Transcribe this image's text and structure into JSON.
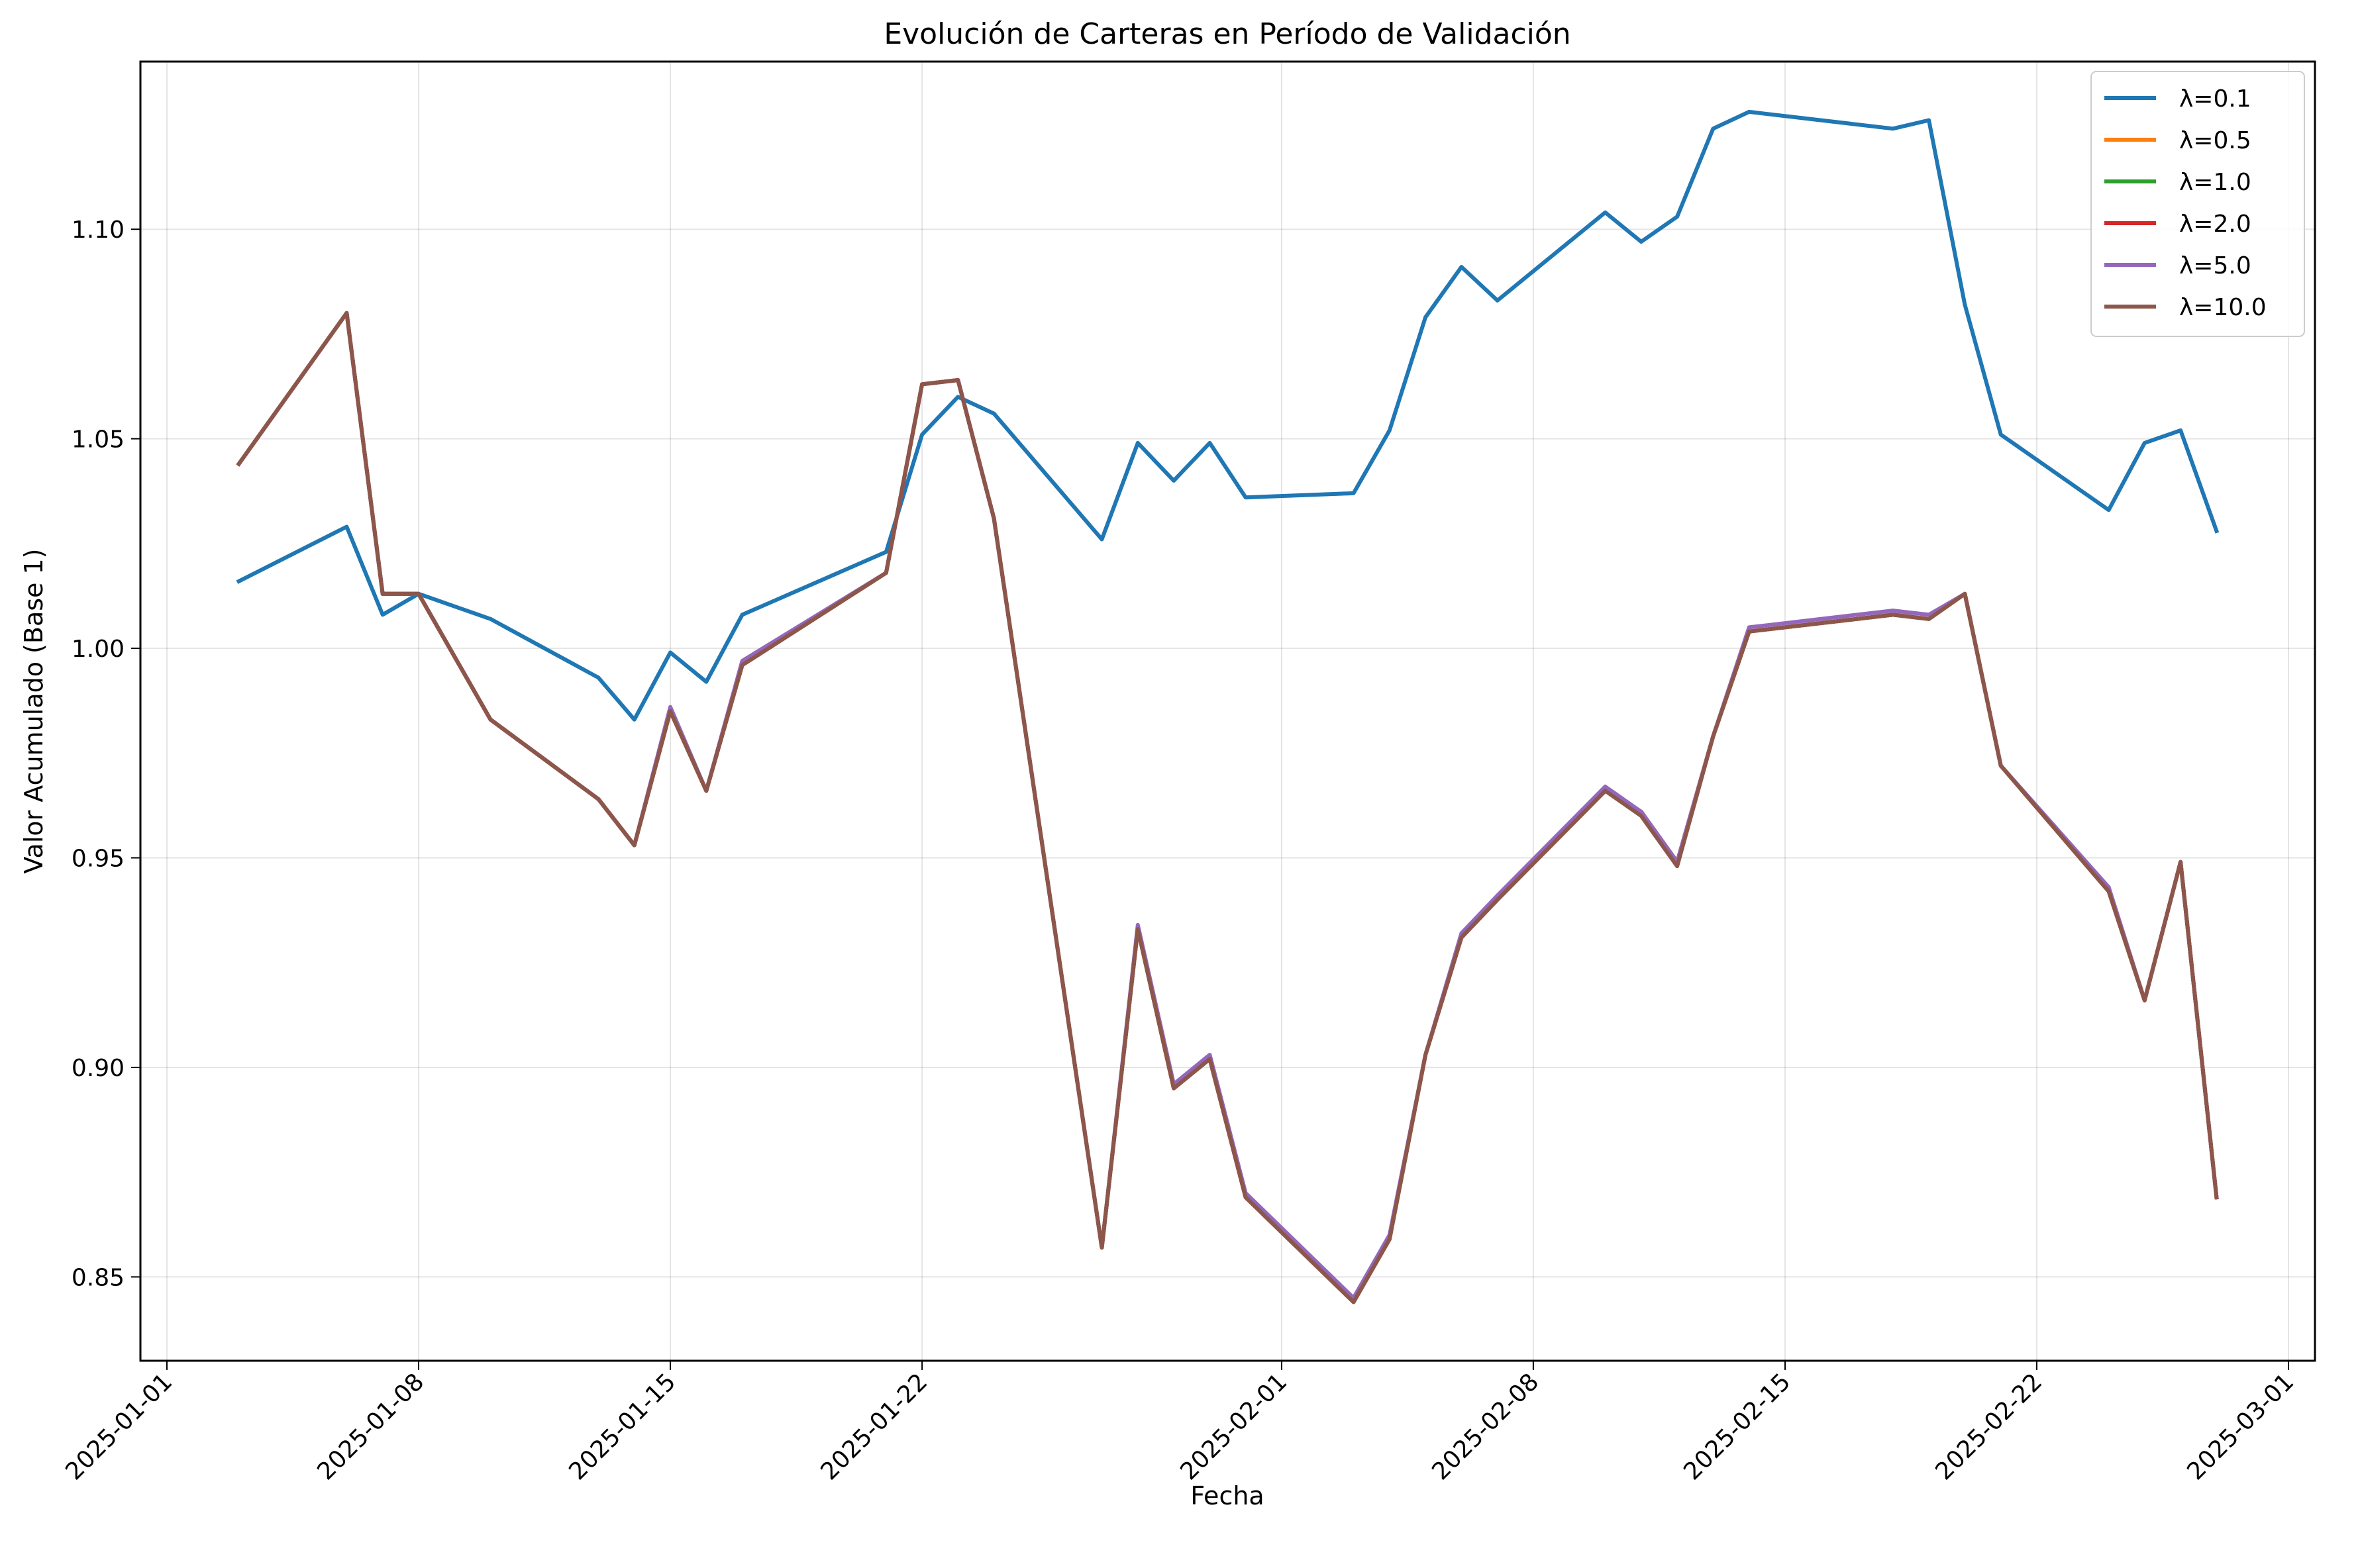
{
  "chart_data": {
    "type": "line",
    "title": "Evolución de Carteras en Período de Validación",
    "xlabel": "Fecha",
    "ylabel": "Valor Acumulado (Base 1)",
    "xlim": [
      "2025-01-01",
      "2025-03-01"
    ],
    "ylim": [
      0.83,
      1.14
    ],
    "x_ticks": [
      "2025-01-01",
      "2025-01-08",
      "2025-01-15",
      "2025-01-22",
      "2025-02-01",
      "2025-02-08",
      "2025-02-15",
      "2025-02-22",
      "2025-03-01"
    ],
    "y_ticks": [
      0.85,
      0.9,
      0.95,
      1.0,
      1.05,
      1.1
    ],
    "y_tick_labels": [
      "0.85",
      "0.90",
      "0.95",
      "1.00",
      "1.05",
      "1.10"
    ],
    "grid": true,
    "legend_position": "top-right",
    "x": [
      "2025-01-03",
      "2025-01-06",
      "2025-01-07",
      "2025-01-08",
      "2025-01-10",
      "2025-01-13",
      "2025-01-14",
      "2025-01-15",
      "2025-01-16",
      "2025-01-17",
      "2025-01-21",
      "2025-01-22",
      "2025-01-23",
      "2025-01-24",
      "2025-01-27",
      "2025-01-28",
      "2025-01-29",
      "2025-01-30",
      "2025-01-31",
      "2025-02-03",
      "2025-02-04",
      "2025-02-05",
      "2025-02-06",
      "2025-02-07",
      "2025-02-10",
      "2025-02-11",
      "2025-02-12",
      "2025-02-13",
      "2025-02-14",
      "2025-02-18",
      "2025-02-19",
      "2025-02-20",
      "2025-02-21",
      "2025-02-24",
      "2025-02-25",
      "2025-02-26",
      "2025-02-27"
    ],
    "series": [
      {
        "name": "λ=0.1",
        "color": "#1f77b4",
        "values": [
          1.016,
          1.029,
          1.008,
          1.013,
          1.007,
          0.993,
          0.983,
          0.999,
          0.992,
          1.008,
          1.023,
          1.051,
          1.06,
          1.056,
          1.026,
          1.049,
          1.04,
          1.049,
          1.036,
          1.037,
          1.052,
          1.079,
          1.091,
          1.083,
          1.104,
          1.097,
          1.103,
          1.124,
          1.128,
          1.124,
          1.126,
          1.082,
          1.051,
          1.033,
          1.049,
          1.052,
          1.028
        ]
      },
      {
        "name": "λ=0.5",
        "color": "#ff7f0e",
        "values": [
          1.044,
          1.08,
          1.013,
          1.013,
          0.983,
          0.964,
          0.953,
          0.985,
          0.966,
          0.996,
          1.018,
          1.063,
          1.064,
          1.031,
          0.857,
          0.933,
          0.895,
          0.902,
          0.869,
          0.844,
          0.859,
          0.903,
          0.931,
          0.94,
          0.966,
          0.961,
          0.949,
          0.979,
          1.004,
          1.008,
          1.007,
          1.013,
          0.972,
          0.942,
          0.916,
          0.949,
          0.869
        ]
      },
      {
        "name": "λ=1.0",
        "color": "#2ca02c",
        "values": [
          1.044,
          1.08,
          1.013,
          1.013,
          0.983,
          0.964,
          0.953,
          0.985,
          0.966,
          0.996,
          1.018,
          1.063,
          1.064,
          1.031,
          0.857,
          0.933,
          0.895,
          0.902,
          0.869,
          0.844,
          0.859,
          0.903,
          0.931,
          0.94,
          0.966,
          0.961,
          0.949,
          0.979,
          1.004,
          1.008,
          1.007,
          1.013,
          0.972,
          0.942,
          0.916,
          0.949,
          0.869
        ]
      },
      {
        "name": "λ=2.0",
        "color": "#d62728",
        "values": [
          1.044,
          1.08,
          1.013,
          1.013,
          0.983,
          0.964,
          0.953,
          0.985,
          0.966,
          0.996,
          1.018,
          1.063,
          1.064,
          1.031,
          0.857,
          0.933,
          0.895,
          0.902,
          0.869,
          0.844,
          0.859,
          0.903,
          0.931,
          0.94,
          0.966,
          0.961,
          0.949,
          0.979,
          1.004,
          1.008,
          1.007,
          1.013,
          0.972,
          0.942,
          0.916,
          0.949,
          0.869
        ]
      },
      {
        "name": "λ=5.0",
        "color": "#9467bd",
        "values": [
          1.044,
          1.08,
          1.013,
          1.013,
          0.983,
          0.964,
          0.953,
          0.986,
          0.966,
          0.997,
          1.018,
          1.063,
          1.064,
          1.031,
          0.857,
          0.934,
          0.896,
          0.903,
          0.87,
          0.845,
          0.86,
          0.903,
          0.932,
          0.941,
          0.967,
          0.961,
          0.949,
          0.979,
          1.005,
          1.009,
          1.008,
          1.013,
          0.972,
          0.943,
          0.916,
          0.949,
          0.869
        ]
      },
      {
        "name": "λ=10.0",
        "color": "#8c564b",
        "values": [
          1.044,
          1.08,
          1.013,
          1.013,
          0.983,
          0.964,
          0.953,
          0.985,
          0.966,
          0.996,
          1.018,
          1.063,
          1.064,
          1.031,
          0.857,
          0.933,
          0.895,
          0.902,
          0.869,
          0.844,
          0.859,
          0.903,
          0.931,
          0.94,
          0.966,
          0.96,
          0.948,
          0.979,
          1.004,
          1.008,
          1.007,
          1.013,
          0.972,
          0.942,
          0.916,
          0.949,
          0.869
        ]
      }
    ]
  }
}
